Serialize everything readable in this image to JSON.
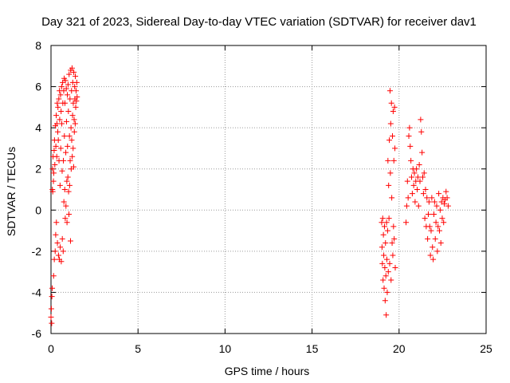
{
  "chart_data": {
    "type": "scatter",
    "title": "Day 321 of 2023, Sidereal Day-to-day VTEC variation (SDTVAR) for receiver dav1",
    "xlabel": "GPS time / hours",
    "ylabel": "SDTVAR / TECUs",
    "xlim": [
      0,
      25
    ],
    "ylim": [
      -6,
      8
    ],
    "grid": true,
    "xticks": [
      {
        "value": 0,
        "label": "0"
      },
      {
        "value": 5,
        "label": "5"
      },
      {
        "value": 10,
        "label": "10"
      },
      {
        "value": 15,
        "label": "15"
      },
      {
        "value": 20,
        "label": "20"
      },
      {
        "value": 25,
        "label": "25"
      }
    ],
    "yticks": [
      {
        "value": -6,
        "label": "-6"
      },
      {
        "value": -4,
        "label": "-4"
      },
      {
        "value": -2,
        "label": "-2"
      },
      {
        "value": 0,
        "label": "0"
      },
      {
        "value": 2,
        "label": "2"
      },
      {
        "value": 4,
        "label": "4"
      },
      {
        "value": 6,
        "label": "6"
      },
      {
        "value": 8,
        "label": "8"
      }
    ],
    "series": [
      {
        "name": "dav1",
        "marker": "+",
        "color": "#ff0000",
        "points": [
          [
            0.0,
            -5.2
          ],
          [
            0.02,
            -4.8
          ],
          [
            0.04,
            -5.5
          ],
          [
            0.05,
            -4.2
          ],
          [
            0.07,
            -3.8
          ],
          [
            0.08,
            1.0
          ],
          [
            0.09,
            2.0
          ],
          [
            0.1,
            0.9
          ],
          [
            0.12,
            2.6
          ],
          [
            0.14,
            1.4
          ],
          [
            0.15,
            -3.2
          ],
          [
            0.16,
            1.8
          ],
          [
            0.18,
            2.9
          ],
          [
            0.19,
            -2.4
          ],
          [
            0.2,
            3.4
          ],
          [
            0.22,
            2.2
          ],
          [
            0.24,
            -2.0
          ],
          [
            0.25,
            4.1
          ],
          [
            0.27,
            -1.2
          ],
          [
            0.28,
            3.1
          ],
          [
            0.3,
            4.6
          ],
          [
            0.31,
            -0.6
          ],
          [
            0.33,
            2.6
          ],
          [
            0.34,
            4.2
          ],
          [
            0.36,
            5.2
          ],
          [
            0.37,
            -1.6
          ],
          [
            0.39,
            3.8
          ],
          [
            0.4,
            5.0
          ],
          [
            0.42,
            3.4
          ],
          [
            0.43,
            -2.2
          ],
          [
            0.45,
            5.4
          ],
          [
            0.46,
            2.4
          ],
          [
            0.48,
            -2.4
          ],
          [
            0.49,
            5.8
          ],
          [
            0.5,
            4.4
          ],
          [
            0.52,
            1.2
          ],
          [
            0.53,
            -1.8
          ],
          [
            0.55,
            5.6
          ],
          [
            0.56,
            3.0
          ],
          [
            0.58,
            4.8
          ],
          [
            0.59,
            -2.5
          ],
          [
            0.61,
            6.0
          ],
          [
            0.62,
            4.2
          ],
          [
            0.64,
            1.9
          ],
          [
            0.65,
            -1.4
          ],
          [
            0.67,
            6.2
          ],
          [
            0.68,
            5.2
          ],
          [
            0.7,
            -2.0
          ],
          [
            0.71,
            2.4
          ],
          [
            0.73,
            5.8
          ],
          [
            0.74,
            0.4
          ],
          [
            0.76,
            6.4
          ],
          [
            0.77,
            3.6
          ],
          [
            0.79,
            1.0
          ],
          [
            0.8,
            5.2
          ],
          [
            0.82,
            -0.4
          ],
          [
            0.83,
            6.3
          ],
          [
            0.85,
            2.8
          ],
          [
            0.86,
            0.2
          ],
          [
            0.88,
            5.9
          ],
          [
            0.89,
            4.3
          ],
          [
            0.91,
            1.4
          ],
          [
            0.92,
            -0.6
          ],
          [
            0.94,
            5.6
          ],
          [
            0.95,
            3.1
          ],
          [
            0.97,
            1.6
          ],
          [
            0.98,
            6.1
          ],
          [
            1.0,
            4.8
          ],
          [
            1.01,
            0.9
          ],
          [
            1.03,
            -0.2
          ],
          [
            1.04,
            6.6
          ],
          [
            1.06,
            3.6
          ],
          [
            1.07,
            1.2
          ],
          [
            1.09,
            5.4
          ],
          [
            1.1,
            2.4
          ],
          [
            1.12,
            -1.5
          ],
          [
            1.13,
            6.8
          ],
          [
            1.15,
            4.0
          ],
          [
            1.16,
            2.0
          ],
          [
            1.18,
            5.8
          ],
          [
            1.19,
            3.4
          ],
          [
            1.21,
            6.9
          ],
          [
            1.22,
            2.6
          ],
          [
            1.24,
            4.6
          ],
          [
            1.25,
            6.2
          ],
          [
            1.27,
            3.0
          ],
          [
            1.28,
            5.2
          ],
          [
            1.3,
            2.1
          ],
          [
            1.31,
            6.7
          ],
          [
            1.33,
            4.4
          ],
          [
            1.34,
            3.8
          ],
          [
            1.36,
            6.0
          ],
          [
            1.37,
            5.4
          ],
          [
            1.39,
            4.2
          ],
          [
            1.4,
            6.5
          ],
          [
            1.42,
            5.0
          ],
          [
            1.44,
            5.8
          ],
          [
            1.46,
            5.3
          ],
          [
            1.48,
            6.2
          ],
          [
            1.5,
            5.5
          ],
          [
            19.0,
            -0.6
          ],
          [
            19.02,
            -1.8
          ],
          [
            19.04,
            -2.6
          ],
          [
            19.06,
            -0.4
          ],
          [
            19.08,
            -3.4
          ],
          [
            19.1,
            -1.2
          ],
          [
            19.12,
            -2.2
          ],
          [
            19.14,
            -3.8
          ],
          [
            19.16,
            -0.8
          ],
          [
            19.18,
            -2.8
          ],
          [
            19.2,
            -4.4
          ],
          [
            19.22,
            -1.6
          ],
          [
            19.24,
            -3.2
          ],
          [
            19.26,
            -5.1
          ],
          [
            19.28,
            -0.6
          ],
          [
            19.3,
            -2.4
          ],
          [
            19.32,
            -4.0
          ],
          [
            19.34,
            -1.0
          ],
          [
            19.36,
            2.4
          ],
          [
            19.38,
            -3.0
          ],
          [
            19.4,
            1.2
          ],
          [
            19.42,
            -0.4
          ],
          [
            19.44,
            3.4
          ],
          [
            19.46,
            -2.6
          ],
          [
            19.48,
            5.8
          ],
          [
            19.5,
            1.8
          ],
          [
            19.52,
            4.2
          ],
          [
            19.54,
            -3.4
          ],
          [
            19.56,
            5.2
          ],
          [
            19.58,
            0.6
          ],
          [
            19.6,
            -1.6
          ],
          [
            19.62,
            3.6
          ],
          [
            19.64,
            -2.2
          ],
          [
            19.66,
            4.8
          ],
          [
            19.68,
            -0.8
          ],
          [
            19.7,
            2.4
          ],
          [
            19.72,
            -1.4
          ],
          [
            19.74,
            5.0
          ],
          [
            19.76,
            3.0
          ],
          [
            19.78,
            -2.8
          ],
          [
            20.4,
            -0.6
          ],
          [
            20.44,
            0.2
          ],
          [
            20.48,
            1.4
          ],
          [
            20.52,
            0.6
          ],
          [
            20.56,
            3.6
          ],
          [
            20.6,
            4.0
          ],
          [
            20.64,
            3.1
          ],
          [
            20.68,
            2.4
          ],
          [
            20.72,
            1.6
          ],
          [
            20.76,
            0.8
          ],
          [
            20.8,
            2.0
          ],
          [
            20.84,
            1.2
          ],
          [
            20.88,
            1.8
          ],
          [
            20.92,
            0.4
          ],
          [
            20.96,
            1.4
          ],
          [
            21.0,
            2.0
          ],
          [
            21.04,
            1.0
          ],
          [
            21.08,
            1.6
          ],
          [
            21.12,
            0.2
          ],
          [
            21.16,
            2.2
          ],
          [
            21.2,
            1.4
          ],
          [
            21.24,
            4.4
          ],
          [
            21.28,
            3.8
          ],
          [
            21.32,
            2.8
          ],
          [
            21.36,
            1.6
          ],
          [
            21.4,
            0.8
          ],
          [
            21.44,
            1.8
          ],
          [
            21.48,
            -0.4
          ],
          [
            21.52,
            1.0
          ],
          [
            21.56,
            -0.8
          ],
          [
            21.6,
            0.6
          ],
          [
            21.64,
            -1.4
          ],
          [
            21.68,
            -0.2
          ],
          [
            21.72,
            0.4
          ],
          [
            21.76,
            -0.8
          ],
          [
            21.8,
            -2.2
          ],
          [
            21.84,
            -1.0
          ],
          [
            21.88,
            0.6
          ],
          [
            21.92,
            -1.8
          ],
          [
            21.96,
            -2.4
          ],
          [
            22.0,
            -0.2
          ],
          [
            22.04,
            0.4
          ],
          [
            22.08,
            -1.4
          ],
          [
            22.12,
            -0.6
          ],
          [
            22.16,
            0.2
          ],
          [
            22.2,
            -2.0
          ],
          [
            22.24,
            -0.8
          ],
          [
            22.28,
            0.8
          ],
          [
            22.32,
            -1.0
          ],
          [
            22.36,
            0.0
          ],
          [
            22.4,
            -1.6
          ],
          [
            22.44,
            0.4
          ],
          [
            22.48,
            -0.4
          ],
          [
            22.52,
            0.6
          ],
          [
            22.56,
            -0.6
          ],
          [
            22.6,
            0.3
          ],
          [
            22.64,
            0.5
          ],
          [
            22.7,
            0.9
          ],
          [
            22.76,
            0.6
          ],
          [
            22.82,
            0.2
          ]
        ]
      }
    ]
  }
}
